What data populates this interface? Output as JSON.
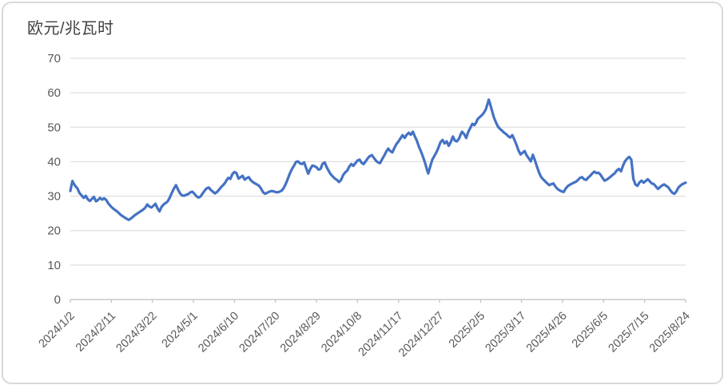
{
  "chart_data": {
    "type": "line",
    "title": "欧元/兆瓦时",
    "xlabel": "",
    "ylabel": "",
    "legend": "none",
    "grid": "horizontal",
    "ylim": [
      0,
      70
    ],
    "y_ticks": [
      0,
      10,
      20,
      30,
      40,
      50,
      60,
      70
    ],
    "x_range_days": [
      0,
      600
    ],
    "x_ticks": [
      {
        "day": 0,
        "label": "2024/1/2"
      },
      {
        "day": 40,
        "label": "2024/2/11"
      },
      {
        "day": 80,
        "label": "2024/3/22"
      },
      {
        "day": 120,
        "label": "2024/5/1"
      },
      {
        "day": 160,
        "label": "2024/6/10"
      },
      {
        "day": 200,
        "label": "2024/7/20"
      },
      {
        "day": 240,
        "label": "2024/8/29"
      },
      {
        "day": 280,
        "label": "2024/10/8"
      },
      {
        "day": 320,
        "label": "2024/11/17"
      },
      {
        "day": 360,
        "label": "2024/12/27"
      },
      {
        "day": 400,
        "label": "2025/2/5"
      },
      {
        "day": 440,
        "label": "2025/3/17"
      },
      {
        "day": 480,
        "label": "2025/4/26"
      },
      {
        "day": 520,
        "label": "2025/6/5"
      },
      {
        "day": 560,
        "label": "2025/7/15"
      },
      {
        "day": 600,
        "label": "2025/8/24"
      }
    ],
    "colors": {
      "line": "#4472C4",
      "gridline": "#D9D9D9",
      "axis": "#BFBFBF",
      "tick_label": "#595959",
      "title": "#404040",
      "border": "#D9D9D9",
      "background": "#FFFFFF"
    },
    "points": [
      [
        0,
        31.5
      ],
      [
        2,
        34.4
      ],
      [
        3,
        33.8
      ],
      [
        5,
        32.9
      ],
      [
        7,
        32.2
      ],
      [
        9,
        30.9
      ],
      [
        11,
        30.2
      ],
      [
        13,
        29.5
      ],
      [
        15,
        30.1
      ],
      [
        17,
        29.1
      ],
      [
        19,
        28.6
      ],
      [
        21,
        29.2
      ],
      [
        23,
        29.8
      ],
      [
        25,
        28.5
      ],
      [
        27,
        28.9
      ],
      [
        29,
        29.5
      ],
      [
        31,
        29.0
      ],
      [
        33,
        29.4
      ],
      [
        35,
        28.9
      ],
      [
        37,
        27.9
      ],
      [
        39,
        27.2
      ],
      [
        41,
        26.6
      ],
      [
        43,
        26.1
      ],
      [
        45,
        25.7
      ],
      [
        47,
        25.2
      ],
      [
        49,
        24.6
      ],
      [
        51,
        24.2
      ],
      [
        53,
        23.8
      ],
      [
        55,
        23.4
      ],
      [
        57,
        23.1
      ],
      [
        59,
        23.5
      ],
      [
        61,
        24.0
      ],
      [
        63,
        24.5
      ],
      [
        65,
        24.9
      ],
      [
        67,
        25.3
      ],
      [
        69,
        25.7
      ],
      [
        71,
        26.1
      ],
      [
        73,
        26.6
      ],
      [
        75,
        27.6
      ],
      [
        77,
        27.0
      ],
      [
        79,
        26.7
      ],
      [
        81,
        27.2
      ],
      [
        83,
        27.8
      ],
      [
        85,
        26.5
      ],
      [
        87,
        25.6
      ],
      [
        89,
        26.9
      ],
      [
        91,
        27.6
      ],
      [
        93,
        28.0
      ],
      [
        95,
        28.5
      ],
      [
        97,
        29.6
      ],
      [
        99,
        31.0
      ],
      [
        101,
        32.2
      ],
      [
        103,
        33.2
      ],
      [
        105,
        31.9
      ],
      [
        107,
        30.8
      ],
      [
        109,
        30.2
      ],
      [
        111,
        30.1
      ],
      [
        113,
        30.4
      ],
      [
        115,
        30.6
      ],
      [
        117,
        31.1
      ],
      [
        119,
        31.3
      ],
      [
        121,
        30.7
      ],
      [
        123,
        30.0
      ],
      [
        125,
        29.6
      ],
      [
        127,
        29.9
      ],
      [
        129,
        30.8
      ],
      [
        131,
        31.6
      ],
      [
        133,
        32.3
      ],
      [
        135,
        32.5
      ],
      [
        137,
        31.8
      ],
      [
        139,
        31.3
      ],
      [
        141,
        30.8
      ],
      [
        143,
        31.2
      ],
      [
        145,
        31.9
      ],
      [
        147,
        32.6
      ],
      [
        149,
        33.2
      ],
      [
        151,
        33.9
      ],
      [
        152,
        34.5
      ],
      [
        154,
        35.3
      ],
      [
        156,
        35.0
      ],
      [
        158,
        36.4
      ],
      [
        160,
        37.0
      ],
      [
        162,
        36.7
      ],
      [
        164,
        35.1
      ],
      [
        166,
        35.5
      ],
      [
        168,
        35.9
      ],
      [
        170,
        34.8
      ],
      [
        172,
        35.2
      ],
      [
        174,
        35.5
      ],
      [
        176,
        34.6
      ],
      [
        178,
        34.1
      ],
      [
        180,
        33.7
      ],
      [
        182,
        33.4
      ],
      [
        184,
        33.0
      ],
      [
        186,
        32.2
      ],
      [
        188,
        31.1
      ],
      [
        190,
        30.7
      ],
      [
        192,
        31.0
      ],
      [
        194,
        31.3
      ],
      [
        196,
        31.5
      ],
      [
        198,
        31.4
      ],
      [
        200,
        31.2
      ],
      [
        202,
        31.1
      ],
      [
        204,
        31.3
      ],
      [
        206,
        31.6
      ],
      [
        208,
        32.3
      ],
      [
        210,
        33.5
      ],
      [
        212,
        35.0
      ],
      [
        214,
        36.5
      ],
      [
        216,
        37.8
      ],
      [
        218,
        38.8
      ],
      [
        220,
        39.9
      ],
      [
        222,
        40.1
      ],
      [
        224,
        39.5
      ],
      [
        226,
        39.3
      ],
      [
        228,
        39.8
      ],
      [
        230,
        38.1
      ],
      [
        232,
        36.5
      ],
      [
        234,
        37.9
      ],
      [
        236,
        38.9
      ],
      [
        238,
        38.7
      ],
      [
        240,
        38.4
      ],
      [
        242,
        37.7
      ],
      [
        244,
        37.9
      ],
      [
        246,
        39.4
      ],
      [
        248,
        39.8
      ],
      [
        250,
        38.4
      ],
      [
        252,
        37.3
      ],
      [
        254,
        36.3
      ],
      [
        256,
        35.7
      ],
      [
        258,
        35.1
      ],
      [
        260,
        34.7
      ],
      [
        262,
        34.1
      ],
      [
        264,
        34.7
      ],
      [
        266,
        36.1
      ],
      [
        268,
        36.9
      ],
      [
        270,
        37.4
      ],
      [
        272,
        38.6
      ],
      [
        274,
        39.3
      ],
      [
        276,
        38.8
      ],
      [
        278,
        39.6
      ],
      [
        280,
        40.3
      ],
      [
        282,
        40.6
      ],
      [
        284,
        39.7
      ],
      [
        286,
        39.3
      ],
      [
        288,
        40.1
      ],
      [
        290,
        41.0
      ],
      [
        292,
        41.6
      ],
      [
        294,
        41.9
      ],
      [
        296,
        41.1
      ],
      [
        298,
        40.3
      ],
      [
        300,
        39.8
      ],
      [
        302,
        39.6
      ],
      [
        304,
        40.7
      ],
      [
        306,
        41.7
      ],
      [
        308,
        42.9
      ],
      [
        310,
        43.8
      ],
      [
        312,
        43.1
      ],
      [
        314,
        42.7
      ],
      [
        316,
        44.0
      ],
      [
        318,
        45.1
      ],
      [
        320,
        45.9
      ],
      [
        322,
        46.8
      ],
      [
        324,
        47.7
      ],
      [
        326,
        46.9
      ],
      [
        328,
        47.8
      ],
      [
        330,
        48.4
      ],
      [
        332,
        47.8
      ],
      [
        334,
        48.7
      ],
      [
        336,
        47.3
      ],
      [
        338,
        46.0
      ],
      [
        340,
        44.3
      ],
      [
        342,
        42.9
      ],
      [
        344,
        41.3
      ],
      [
        346,
        39.6
      ],
      [
        348,
        37.4
      ],
      [
        349,
        36.6
      ],
      [
        351,
        38.7
      ],
      [
        353,
        40.6
      ],
      [
        355,
        41.7
      ],
      [
        357,
        42.7
      ],
      [
        359,
        44.1
      ],
      [
        361,
        45.7
      ],
      [
        363,
        46.3
      ],
      [
        365,
        45.3
      ],
      [
        367,
        45.9
      ],
      [
        369,
        44.6
      ],
      [
        371,
        45.7
      ],
      [
        373,
        47.3
      ],
      [
        375,
        46.1
      ],
      [
        377,
        45.9
      ],
      [
        379,
        46.7
      ],
      [
        381,
        48.2
      ],
      [
        382,
        48.7
      ],
      [
        384,
        48.0
      ],
      [
        386,
        46.9
      ],
      [
        388,
        48.6
      ],
      [
        390,
        49.8
      ],
      [
        392,
        51.0
      ],
      [
        394,
        50.6
      ],
      [
        396,
        51.5
      ],
      [
        397,
        52.3
      ],
      [
        399,
        52.9
      ],
      [
        401,
        53.4
      ],
      [
        403,
        54.1
      ],
      [
        405,
        55.1
      ],
      [
        407,
        56.9
      ],
      [
        408,
        58.0
      ],
      [
        409,
        57.1
      ],
      [
        411,
        54.9
      ],
      [
        413,
        52.9
      ],
      [
        415,
        51.4
      ],
      [
        417,
        50.2
      ],
      [
        419,
        49.5
      ],
      [
        421,
        49.0
      ],
      [
        423,
        48.4
      ],
      [
        425,
        48.0
      ],
      [
        427,
        47.4
      ],
      [
        429,
        47.0
      ],
      [
        431,
        47.7
      ],
      [
        433,
        46.4
      ],
      [
        435,
        44.9
      ],
      [
        437,
        43.3
      ],
      [
        439,
        42.1
      ],
      [
        441,
        42.6
      ],
      [
        443,
        43.1
      ],
      [
        445,
        41.8
      ],
      [
        447,
        41.0
      ],
      [
        449,
        40.1
      ],
      [
        451,
        42.0
      ],
      [
        453,
        40.4
      ],
      [
        455,
        38.6
      ],
      [
        457,
        36.9
      ],
      [
        459,
        35.6
      ],
      [
        461,
        34.9
      ],
      [
        463,
        34.3
      ],
      [
        465,
        33.7
      ],
      [
        467,
        33.2
      ],
      [
        469,
        33.5
      ],
      [
        471,
        33.7
      ],
      [
        473,
        32.8
      ],
      [
        475,
        32.1
      ],
      [
        477,
        31.7
      ],
      [
        479,
        31.4
      ],
      [
        481,
        31.2
      ],
      [
        483,
        32.2
      ],
      [
        485,
        32.9
      ],
      [
        487,
        33.3
      ],
      [
        489,
        33.6
      ],
      [
        491,
        33.9
      ],
      [
        493,
        34.2
      ],
      [
        495,
        34.7
      ],
      [
        497,
        35.3
      ],
      [
        499,
        35.5
      ],
      [
        501,
        34.9
      ],
      [
        503,
        34.7
      ],
      [
        505,
        35.4
      ],
      [
        507,
        35.9
      ],
      [
        509,
        36.6
      ],
      [
        511,
        37.1
      ],
      [
        513,
        36.7
      ],
      [
        515,
        36.8
      ],
      [
        517,
        36.2
      ],
      [
        519,
        35.3
      ],
      [
        521,
        34.5
      ],
      [
        523,
        34.8
      ],
      [
        525,
        35.2
      ],
      [
        527,
        35.7
      ],
      [
        529,
        36.2
      ],
      [
        531,
        36.7
      ],
      [
        533,
        37.5
      ],
      [
        535,
        37.9
      ],
      [
        537,
        37.2
      ],
      [
        539,
        38.9
      ],
      [
        541,
        40.2
      ],
      [
        543,
        40.9
      ],
      [
        545,
        41.4
      ],
      [
        547,
        40.6
      ],
      [
        548,
        37.8
      ],
      [
        549,
        35.0
      ],
      [
        551,
        33.4
      ],
      [
        553,
        33.0
      ],
      [
        555,
        34.0
      ],
      [
        557,
        34.5
      ],
      [
        559,
        33.9
      ],
      [
        561,
        34.4
      ],
      [
        563,
        34.9
      ],
      [
        565,
        34.3
      ],
      [
        567,
        33.7
      ],
      [
        569,
        33.5
      ],
      [
        571,
        32.8
      ],
      [
        573,
        32.1
      ],
      [
        575,
        32.6
      ],
      [
        577,
        33.1
      ],
      [
        579,
        33.4
      ],
      [
        581,
        33.0
      ],
      [
        583,
        32.6
      ],
      [
        585,
        31.7
      ],
      [
        587,
        31.0
      ],
      [
        589,
        30.7
      ],
      [
        591,
        31.4
      ],
      [
        593,
        32.5
      ],
      [
        595,
        33.1
      ],
      [
        597,
        33.5
      ],
      [
        599,
        33.8
      ],
      [
        600,
        33.9
      ]
    ]
  }
}
